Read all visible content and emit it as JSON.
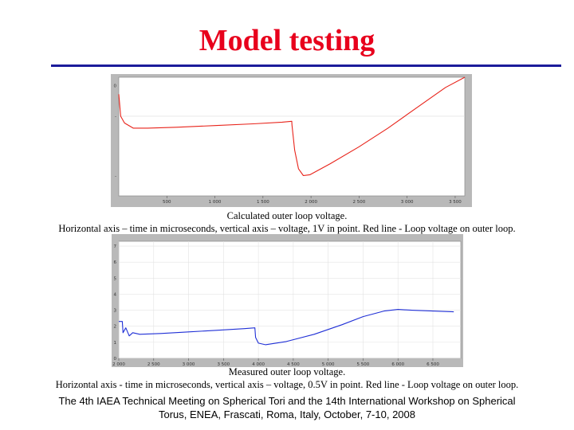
{
  "slide": {
    "title": "Model testing",
    "caption1_line1": "Calculated outer loop voltage.",
    "caption1_line2": "Horizontal axis – time in microseconds, vertical axis – voltage, 1V in point. Red line - Loop voltage on outer loop.",
    "caption2_line1": "Measured outer loop voltage.",
    "caption2_line2": "Horizontal axis - time in microseconds, vertical axis – voltage, 0.5V in point. Red line - Loop voltage on outer loop.",
    "footer_line1": "The 4th IAEA Technical Meeting on Spherical Tori and the 14th International Workshop on Spherical",
    "footer_line2": "Torus, ENEA, Frascati, Roma, Italy, October, 7-10, 2008"
  },
  "colors": {
    "title": "#e8001c",
    "rule": "#1b1b9a",
    "calc_line": "#e8231a",
    "meas_line": "#1f2fd6"
  },
  "chart_data": [
    {
      "type": "line",
      "title": "",
      "xlabel": "",
      "ylabel": "",
      "xlim": [
        0,
        3600
      ],
      "ylim": [
        -6.5,
        0.5
      ],
      "x_ticks": [
        "500",
        "1 000",
        "1 500",
        "2 000",
        "2 500",
        "3 000",
        "3 500"
      ],
      "x_tick_values": [
        500,
        1000,
        1500,
        2000,
        2500,
        3000,
        3500
      ],
      "y_ticks": [
        "0",
        "-",
        "-"
      ],
      "y_tick_values": [
        0,
        -1.8,
        -5.3
      ],
      "grid": false,
      "series": [
        {
          "color": "#e8231a",
          "points": [
            [
              0,
              -0.5
            ],
            [
              20,
              -1.8
            ],
            [
              60,
              -2.2
            ],
            [
              150,
              -2.5
            ],
            [
              300,
              -2.5
            ],
            [
              600,
              -2.45
            ],
            [
              1000,
              -2.35
            ],
            [
              1400,
              -2.25
            ],
            [
              1700,
              -2.15
            ],
            [
              1800,
              -2.1
            ],
            [
              1802,
              -2.3
            ],
            [
              1830,
              -3.8
            ],
            [
              1870,
              -4.9
            ],
            [
              1920,
              -5.3
            ],
            [
              1990,
              -5.25
            ],
            [
              2200,
              -4.6
            ],
            [
              2500,
              -3.6
            ],
            [
              2800,
              -2.5
            ],
            [
              3100,
              -1.3
            ],
            [
              3400,
              -0.1
            ],
            [
              3600,
              0.5
            ]
          ]
        }
      ]
    },
    {
      "type": "line",
      "title": "",
      "xlabel": "",
      "ylabel": "",
      "xlim": [
        2000,
        6900
      ],
      "ylim": [
        0,
        7.3
      ],
      "x_ticks": [
        "2 000",
        "2 500",
        "3 000",
        "3 500",
        "4 000",
        "4 500",
        "5 000",
        "5 500",
        "6 000",
        "6 500"
      ],
      "x_tick_values": [
        2000,
        2500,
        3000,
        3500,
        4000,
        4500,
        5000,
        5500,
        6000,
        6500
      ],
      "y_ticks": [
        "7",
        "6",
        "5",
        "4",
        "3",
        "2",
        "1",
        "0"
      ],
      "y_tick_values": [
        7,
        6,
        5,
        4,
        3,
        2,
        1,
        0
      ],
      "grid": true,
      "series": [
        {
          "color": "#1f2fd6",
          "points": [
            [
              2000,
              2.3
            ],
            [
              2050,
              2.3
            ],
            [
              2060,
              1.6
            ],
            [
              2100,
              1.9
            ],
            [
              2150,
              1.4
            ],
            [
              2200,
              1.6
            ],
            [
              2300,
              1.5
            ],
            [
              2600,
              1.55
            ],
            [
              3000,
              1.65
            ],
            [
              3400,
              1.75
            ],
            [
              3800,
              1.85
            ],
            [
              3950,
              1.9
            ],
            [
              3960,
              1.3
            ],
            [
              4000,
              0.95
            ],
            [
              4100,
              0.85
            ],
            [
              4400,
              1.05
            ],
            [
              4800,
              1.5
            ],
            [
              5200,
              2.1
            ],
            [
              5500,
              2.6
            ],
            [
              5800,
              2.95
            ],
            [
              6000,
              3.05
            ],
            [
              6200,
              3.0
            ],
            [
              6500,
              2.95
            ],
            [
              6800,
              2.9
            ]
          ]
        }
      ]
    }
  ]
}
